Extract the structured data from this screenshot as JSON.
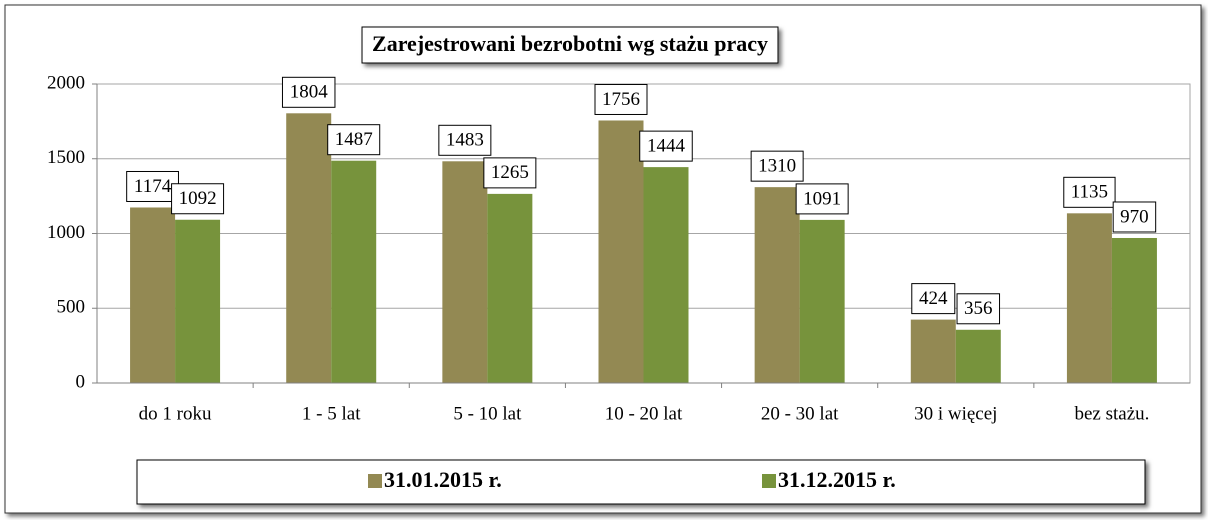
{
  "chart_data": {
    "type": "bar",
    "title": "Zarejestrowani bezrobotni wg stażu pracy",
    "categories": [
      "do 1 roku",
      "1 - 5 lat",
      "5 - 10 lat",
      "10 - 20 lat",
      "20 - 30 lat",
      "30 i więcej",
      "bez stażu."
    ],
    "series": [
      {
        "name": "31.01.2015 r.",
        "color": "#938953",
        "values": [
          1174,
          1804,
          1483,
          1756,
          1310,
          424,
          1135
        ]
      },
      {
        "name": "31.12.2015 r.",
        "color": "#77933c",
        "values": [
          1092,
          1487,
          1265,
          1444,
          1091,
          356,
          970
        ]
      }
    ],
    "ylim": [
      0,
      2000
    ],
    "yticks": [
      0,
      500,
      1000,
      1500,
      2000
    ],
    "grid": true,
    "legend": "bottom"
  }
}
